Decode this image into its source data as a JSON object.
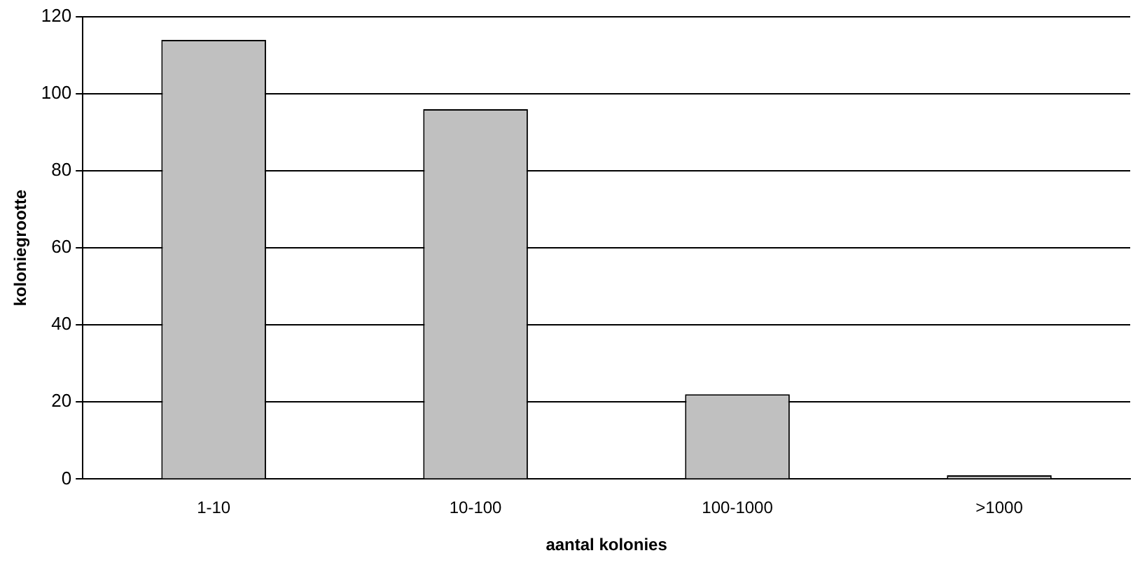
{
  "chart_data": {
    "type": "bar",
    "xlabel": "aantal kolonies",
    "ylabel": "koloniegrootte",
    "categories": [
      "1-10",
      "10-100",
      "100-1000",
      ">1000"
    ],
    "values": [
      114,
      96,
      22,
      1
    ],
    "color": "#c0c0c0",
    "ylim": [
      0,
      120
    ],
    "yticks": [
      0,
      20,
      40,
      60,
      80,
      100,
      120
    ],
    "grid": "y"
  }
}
